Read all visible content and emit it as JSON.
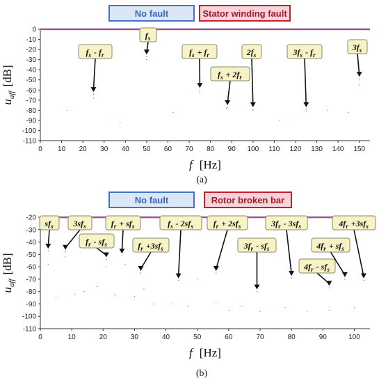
{
  "chart_data": [
    {
      "type": "line",
      "panel_label": "(a)",
      "xlabel_symbol": "f",
      "xlabel_unit": "[Hz]",
      "ylabel_symbol": "u",
      "ylabel_sub": "aff",
      "ylabel_unit": "[dB]",
      "xlim": [
        0,
        155
      ],
      "ylim": [
        -110,
        0
      ],
      "xticks": [
        0,
        10,
        20,
        30,
        40,
        50,
        60,
        70,
        80,
        90,
        100,
        110,
        120,
        130,
        140,
        150
      ],
      "yticks": [
        0,
        -10,
        -20,
        -30,
        -40,
        -50,
        -60,
        -70,
        -80,
        -90,
        -100,
        -110
      ],
      "grid": false,
      "legend_position": "top-center",
      "series": [
        {
          "name": "No fault",
          "color": "#4472c4",
          "peaks": [
            {
              "x": 12.5,
              "y": -80
            },
            {
              "x": 25,
              "y": -68
            },
            {
              "x": 37.5,
              "y": -92
            },
            {
              "x": 50,
              "y": -30
            },
            {
              "x": 62.5,
              "y": -82
            },
            {
              "x": 75,
              "y": -63
            },
            {
              "x": 87.5,
              "y": -78
            },
            {
              "x": 100,
              "y": -80
            },
            {
              "x": 112.5,
              "y": -90
            },
            {
              "x": 125,
              "y": -81
            },
            {
              "x": 135,
              "y": -80
            },
            {
              "x": 145,
              "y": -82
            },
            {
              "x": 150,
              "y": -55
            }
          ]
        },
        {
          "name": "Stator winding fault",
          "color": "#c0202a",
          "peaks": [
            {
              "x": 25,
              "y": -64
            },
            {
              "x": 50,
              "y": -27
            },
            {
              "x": 75,
              "y": -60
            },
            {
              "x": 88,
              "y": -77
            },
            {
              "x": 100,
              "y": -79
            },
            {
              "x": 125,
              "y": -79
            },
            {
              "x": 150,
              "y": -49
            }
          ]
        }
      ],
      "annotations": [
        {
          "label": "fs - fr",
          "x": 25,
          "y": -64
        },
        {
          "label": "fs",
          "x": 50,
          "y": -27
        },
        {
          "label": "fs + fr",
          "x": 75,
          "y": -60
        },
        {
          "label": "fs + 2fr",
          "x": 88,
          "y": -77
        },
        {
          "label": "2fs",
          "x": 100,
          "y": -79
        },
        {
          "label": "3fs - fr",
          "x": 125,
          "y": -79
        },
        {
          "label": "3fs",
          "x": 150,
          "y": -49
        }
      ]
    },
    {
      "type": "line",
      "panel_label": "(b)",
      "xlabel_symbol": "f",
      "xlabel_unit": "[Hz]",
      "ylabel_symbol": "u",
      "ylabel_sub": "aff",
      "ylabel_unit": "[dB]",
      "xlim": [
        0,
        105
      ],
      "ylim": [
        -110,
        -20
      ],
      "xticks": [
        0,
        10,
        20,
        30,
        40,
        50,
        60,
        70,
        80,
        90,
        100
      ],
      "yticks": [
        -20,
        -30,
        -40,
        -50,
        -60,
        -70,
        -80,
        -90,
        -100,
        -110
      ],
      "grid": false,
      "legend_position": "top-center",
      "series": [
        {
          "name": "No fault",
          "color": "#4472c4",
          "peaks": [
            {
              "x": 2.5,
              "y": -58
            },
            {
              "x": 5,
              "y": -85
            },
            {
              "x": 8,
              "y": -52
            },
            {
              "x": 11,
              "y": -82
            },
            {
              "x": 14,
              "y": -80
            },
            {
              "x": 18,
              "y": -76
            },
            {
              "x": 21,
              "y": -60
            },
            {
              "x": 24,
              "y": -83
            },
            {
              "x": 27,
              "y": -58
            },
            {
              "x": 30,
              "y": -84
            },
            {
              "x": 33,
              "y": -78
            },
            {
              "x": 36,
              "y": -90
            },
            {
              "x": 42,
              "y": -90
            },
            {
              "x": 47,
              "y": -92
            },
            {
              "x": 50,
              "y": -70
            },
            {
              "x": 56,
              "y": -90
            },
            {
              "x": 60,
              "y": -95
            },
            {
              "x": 64,
              "y": -92
            },
            {
              "x": 70,
              "y": -96
            },
            {
              "x": 78,
              "y": -93
            },
            {
              "x": 85,
              "y": -96
            },
            {
              "x": 92,
              "y": -95
            },
            {
              "x": 100,
              "y": -93
            }
          ]
        },
        {
          "name": "Rotor broken bar",
          "color": "#c0202a",
          "peaks": [
            {
              "x": 2.5,
              "y": -47
            },
            {
              "x": 8,
              "y": -48
            },
            {
              "x": 21,
              "y": -54
            },
            {
              "x": 26,
              "y": -51
            },
            {
              "x": 32,
              "y": -65
            },
            {
              "x": 44,
              "y": -71
            },
            {
              "x": 56,
              "y": -65
            },
            {
              "x": 69,
              "y": -80
            },
            {
              "x": 80,
              "y": -69
            },
            {
              "x": 92,
              "y": -77
            },
            {
              "x": 97,
              "y": -70
            },
            {
              "x": 103,
              "y": -71
            }
          ]
        }
      ],
      "annotations": [
        {
          "label": "sfs",
          "x": 2.5,
          "y": -47
        },
        {
          "label": "3sfs",
          "x": 8,
          "y": -48
        },
        {
          "label": "fr - sfs",
          "x": 21,
          "y": -54
        },
        {
          "label": "fr + sfs",
          "x": 26,
          "y": -51
        },
        {
          "label": "fr +3sfs",
          "x": 32,
          "y": -65
        },
        {
          "label": "fs - 2sfs",
          "x": 44,
          "y": -71
        },
        {
          "label": "fr + 2sfs",
          "x": 56,
          "y": -65
        },
        {
          "label": "3fr - sfs",
          "x": 69,
          "y": -80
        },
        {
          "label": "3fr - 3sfs",
          "x": 80,
          "y": -69
        },
        {
          "label": "4fr - sfs",
          "x": 92,
          "y": -77
        },
        {
          "label": "4fr + sfs",
          "x": 97,
          "y": -70
        },
        {
          "label": "4fr +3sfs",
          "x": 103,
          "y": -71
        }
      ]
    }
  ]
}
